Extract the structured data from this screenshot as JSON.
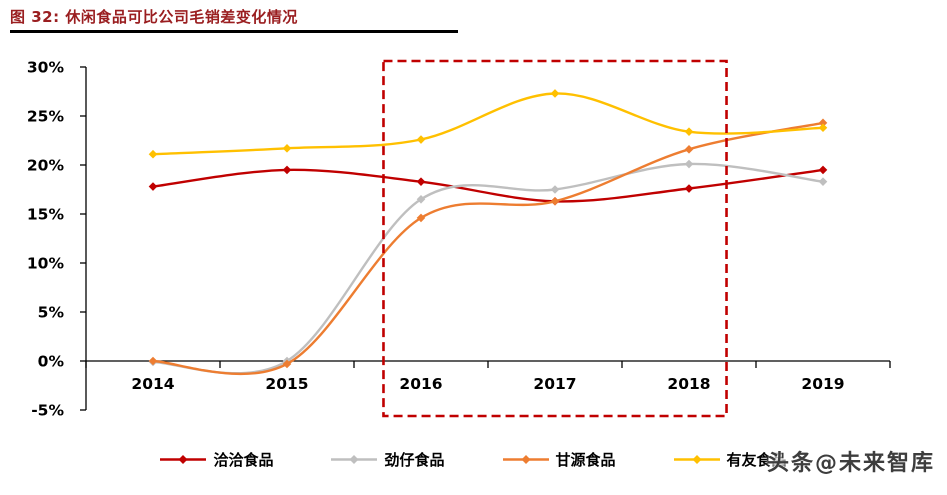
{
  "header": {
    "title": "图 32: 休闲食品可比公司毛销差变化情况"
  },
  "watermark": "头条@未来智库",
  "colors": {
    "title": "#9a1e20",
    "underline": "#000000",
    "axis": "#000000",
    "watermark": "#3d3d3d"
  },
  "chart_data": {
    "type": "line",
    "title": "休闲食品可比公司毛销差变化情况",
    "x_labels": [
      "2014",
      "2015",
      "2016",
      "2017",
      "2018",
      "2019"
    ],
    "ytick_labels": [
      "30%",
      "25%",
      "20%",
      "15%",
      "10%",
      "5%",
      "0%",
      "-5%"
    ],
    "ylim": [
      -5,
      30
    ],
    "ytick_step": 5,
    "grid": false,
    "legend_position": "bottom",
    "unit": "percent",
    "line_style": "smooth",
    "marker": "diamond",
    "series": [
      {
        "name": "洽洽食品",
        "color": "#c00000",
        "values": [
          17.8,
          19.5,
          18.3,
          16.3,
          17.6,
          19.5
        ]
      },
      {
        "name": "劲仔食品",
        "color": "#bfbfbf",
        "values": [
          -0.1,
          0.0,
          16.5,
          17.5,
          20.1,
          18.3
        ]
      },
      {
        "name": "甘源食品",
        "color": "#ed7d31",
        "values": [
          0.0,
          -0.3,
          14.6,
          16.3,
          21.6,
          24.3
        ]
      },
      {
        "name": "有友食品",
        "color": "#ffc000",
        "values": [
          21.1,
          21.7,
          22.6,
          27.3,
          23.4,
          23.8
        ]
      }
    ],
    "highlight_box": {
      "from_category_index": 1.72,
      "to_category_index": 4.28,
      "color": "#c00000",
      "style": "dashed",
      "covers_years": [
        "2016",
        "2018"
      ]
    }
  }
}
